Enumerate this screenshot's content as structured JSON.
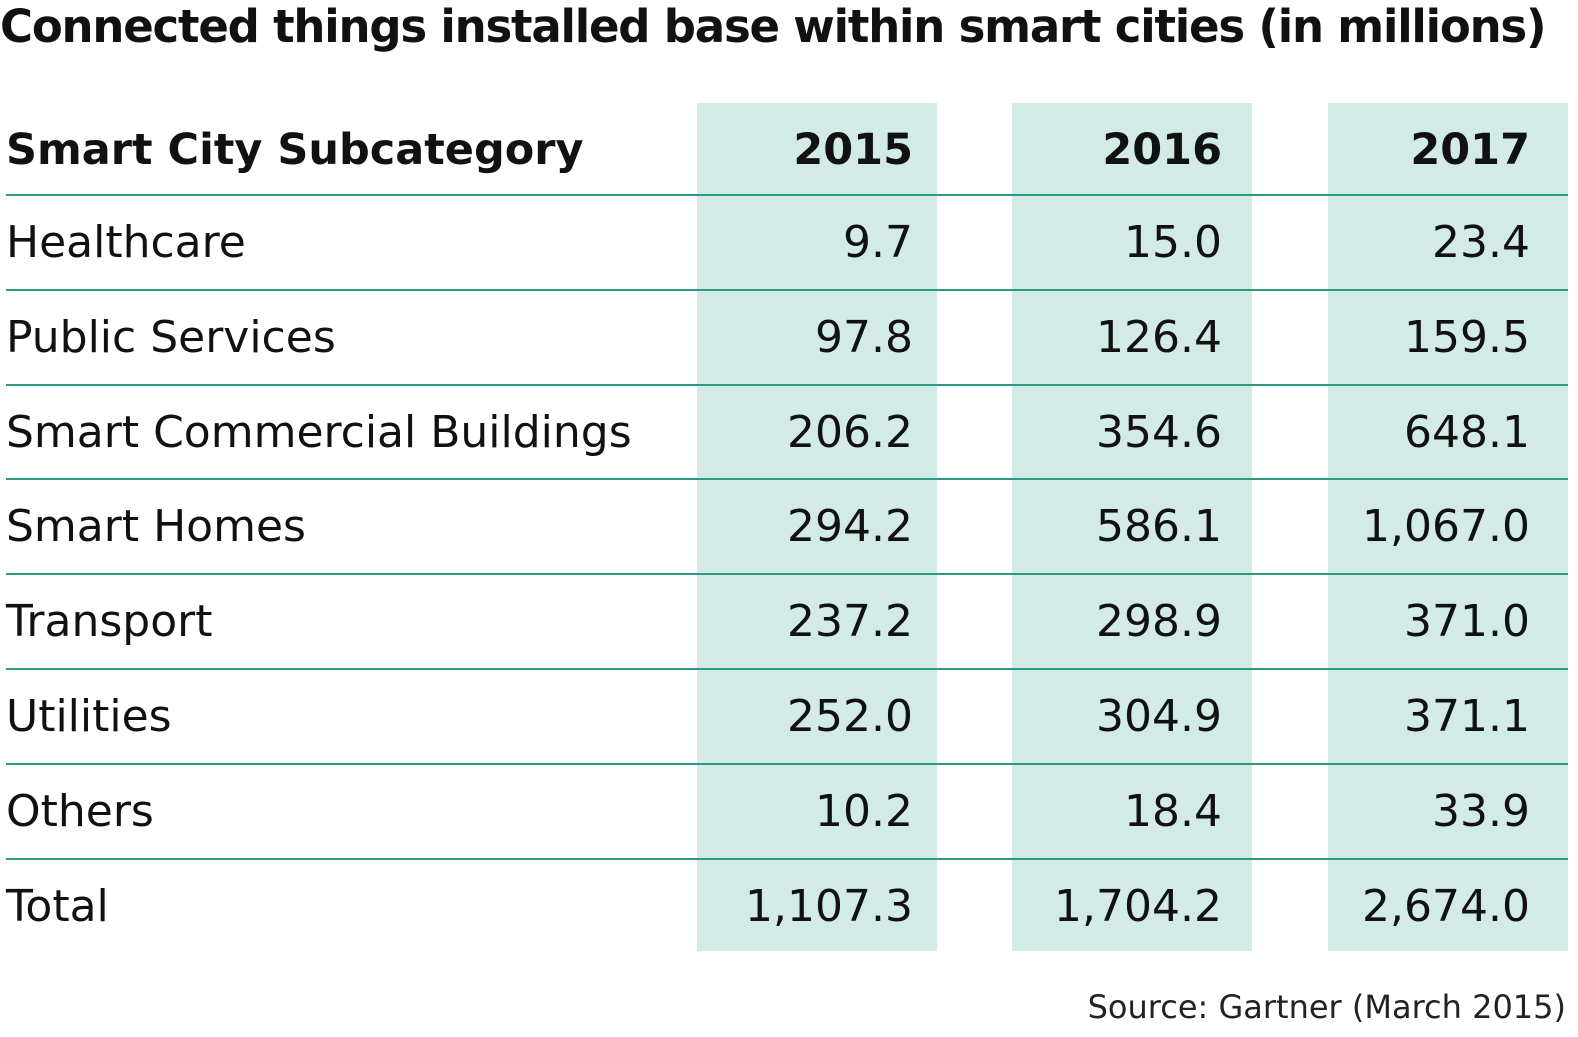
{
  "colors": {
    "band": "#d3ebe7",
    "rule": "#2a9a86"
  },
  "chart_data": {
    "type": "table",
    "title": "Connected things installed base within smart cities (in millions)",
    "columns": [
      "Smart City Subcategory",
      "2015",
      "2016",
      "2017"
    ],
    "rows": [
      {
        "label": "Healthcare",
        "values": [
          "9.7",
          "15.0",
          "23.4"
        ]
      },
      {
        "label": "Public Services",
        "values": [
          "97.8",
          "126.4",
          "159.5"
        ]
      },
      {
        "label": "Smart Commercial Buildings",
        "values": [
          "206.2",
          "354.6",
          "648.1"
        ]
      },
      {
        "label": "Smart Homes",
        "values": [
          "294.2",
          "586.1",
          "1,067.0"
        ]
      },
      {
        "label": "Transport",
        "values": [
          "237.2",
          "298.9",
          "371.0"
        ]
      },
      {
        "label": "Utilities",
        "values": [
          "252.0",
          "304.9",
          "371.1"
        ]
      },
      {
        "label": "Others",
        "values": [
          "10.2",
          "18.4",
          "33.9"
        ]
      },
      {
        "label": "Total",
        "values": [
          "1,107.3",
          "1,704.2",
          "2,674.0"
        ]
      }
    ],
    "source": "Source: Gartner (March 2015)"
  }
}
